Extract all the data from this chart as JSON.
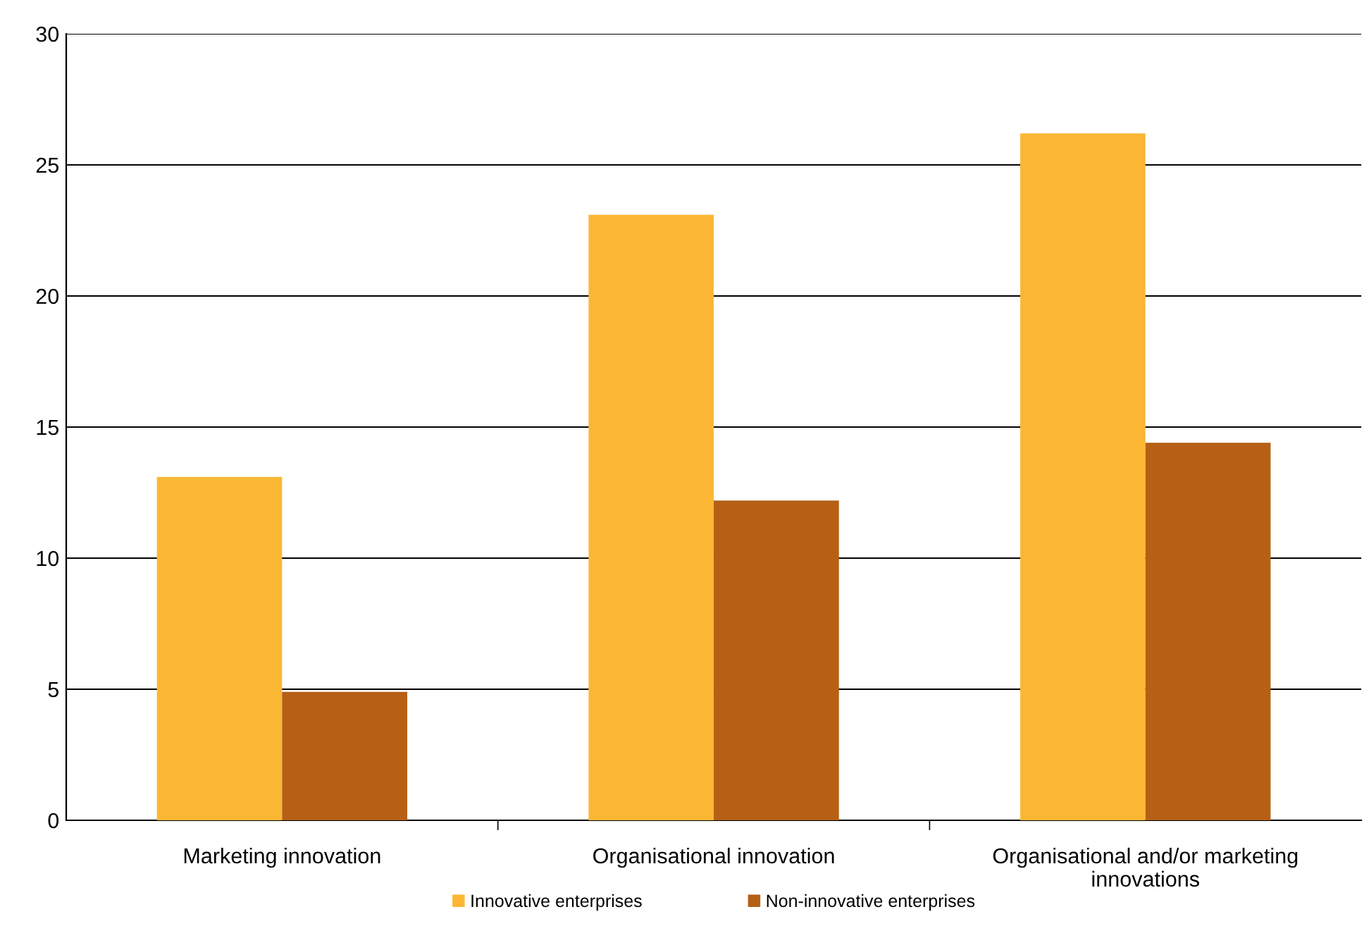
{
  "chart_data": {
    "type": "bar",
    "categories": [
      "Marketing innovation",
      "Organisational innovation",
      "Organisational and/or marketing\ninnovations"
    ],
    "series": [
      {
        "name": "Innovative enterprises",
        "color": "#fbb734",
        "values": [
          13.1,
          23.1,
          26.2
        ]
      },
      {
        "name": "Non-innovative enterprises",
        "color": "#b56015",
        "values": [
          4.9,
          12.2,
          14.4
        ]
      }
    ],
    "ylim": [
      0,
      30
    ],
    "yticks": [
      0,
      5,
      10,
      15,
      20,
      25,
      30
    ],
    "grid": "y",
    "legend": "bottom"
  }
}
